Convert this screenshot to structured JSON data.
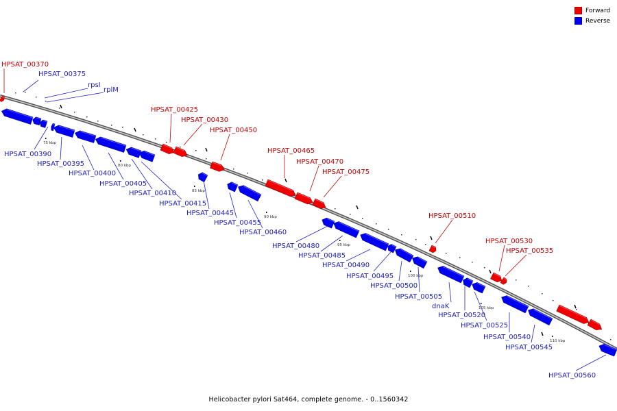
{
  "legend": {
    "forward_label": "Forward",
    "reverse_label": "Reverse",
    "forward_color": "#f00000",
    "reverse_color": "#0000f0"
  },
  "colors": {
    "forward_dark": "#a00000",
    "reverse_dark": "#0000a0",
    "label_forward": "#c00000",
    "label_reverse": "#2020c0",
    "backbone": "#888888"
  },
  "caption": "Helicobacter pylori Sat464, complete genome. - 0..1560342",
  "scale_labels": [
    "75 kbp",
    "80 kbp",
    "85 kbp",
    "90 kbp",
    "95 kbp",
    "100 kbp",
    "105 kbp",
    "110 kbp"
  ],
  "genes": {
    "forward": [
      "HPSAT_00370",
      "HPSAT_00425",
      "HPSAT_00430",
      "HPSAT_00450",
      "HPSAT_00465",
      "HPSAT_00470",
      "HPSAT_00475",
      "HPSAT_00510",
      "HPSAT_00530",
      "HPSAT_00535"
    ],
    "reverse": [
      "HPSAT_00375",
      "rpsI",
      "rplM",
      "HPSAT_00390",
      "HPSAT_00395",
      "HPSAT_00400",
      "HPSAT_00405",
      "HPSAT_00410",
      "HPSAT_00415",
      "HPSAT_00445",
      "HPSAT_00455",
      "HPSAT_00460",
      "HPSAT_00480",
      "HPSAT_00485",
      "HPSAT_00490",
      "HPSAT_00495",
      "HPSAT_00500",
      "HPSAT_00505",
      "dnaK",
      "HPSAT_00520",
      "HPSAT_00525",
      "HPSAT_00540",
      "HPSAT_00545",
      "HPSAT_00560"
    ]
  }
}
